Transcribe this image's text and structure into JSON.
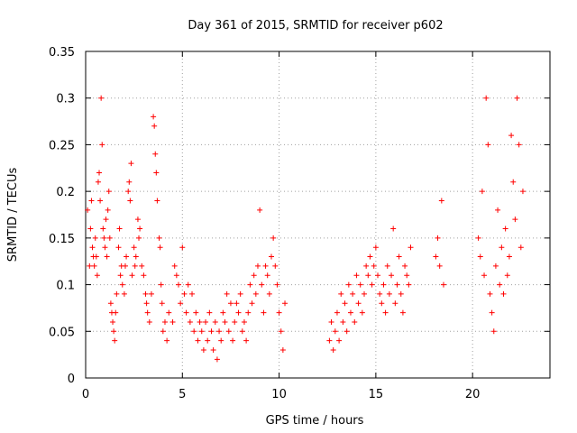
{
  "chart_data": {
    "type": "scatter",
    "title": "Day 361 of 2015, SRMTID for receiver p602",
    "xlabel": "GPS time / hours",
    "ylabel": "SRMTID / TECUs",
    "xlim": [
      0,
      24
    ],
    "ylim": [
      0,
      0.35
    ],
    "xticks": [
      0,
      5,
      10,
      15,
      20
    ],
    "xtick_labels": [
      "0",
      "5",
      "10",
      "15",
      "20"
    ],
    "yticks": [
      0,
      0.05,
      0.1,
      0.15,
      0.2,
      0.25,
      0.3,
      0.35
    ],
    "ytick_labels": [
      "0",
      "0.05",
      "0.1",
      "0.15",
      "0.2",
      "0.25",
      "0.3",
      "0.35"
    ],
    "grid": true,
    "marker": "+",
    "series": [
      {
        "name": "SRMTID",
        "color": "#ff0000",
        "points": [
          [
            0.1,
            0.18
          ],
          [
            0.2,
            0.12
          ],
          [
            0.25,
            0.16
          ],
          [
            0.3,
            0.19
          ],
          [
            0.35,
            0.14
          ],
          [
            0.4,
            0.13
          ],
          [
            0.45,
            0.12
          ],
          [
            0.5,
            0.15
          ],
          [
            0.55,
            0.13
          ],
          [
            0.6,
            0.11
          ],
          [
            0.65,
            0.21
          ],
          [
            0.7,
            0.22
          ],
          [
            0.75,
            0.19
          ],
          [
            0.8,
            0.3
          ],
          [
            0.85,
            0.25
          ],
          [
            0.9,
            0.16
          ],
          [
            0.95,
            0.15
          ],
          [
            1.0,
            0.14
          ],
          [
            1.05,
            0.17
          ],
          [
            1.1,
            0.13
          ],
          [
            1.15,
            0.18
          ],
          [
            1.2,
            0.2
          ],
          [
            1.25,
            0.15
          ],
          [
            1.3,
            0.08
          ],
          [
            1.35,
            0.07
          ],
          [
            1.4,
            0.06
          ],
          [
            1.45,
            0.05
          ],
          [
            1.5,
            0.04
          ],
          [
            1.55,
            0.07
          ],
          [
            1.6,
            0.09
          ],
          [
            1.7,
            0.14
          ],
          [
            1.75,
            0.16
          ],
          [
            1.8,
            0.11
          ],
          [
            1.85,
            0.12
          ],
          [
            1.9,
            0.1
          ],
          [
            2.0,
            0.09
          ],
          [
            2.05,
            0.12
          ],
          [
            2.1,
            0.13
          ],
          [
            2.2,
            0.2
          ],
          [
            2.25,
            0.21
          ],
          [
            2.3,
            0.19
          ],
          [
            2.35,
            0.23
          ],
          [
            2.4,
            0.11
          ],
          [
            2.5,
            0.14
          ],
          [
            2.55,
            0.12
          ],
          [
            2.6,
            0.13
          ],
          [
            2.7,
            0.17
          ],
          [
            2.75,
            0.15
          ],
          [
            2.8,
            0.16
          ],
          [
            2.9,
            0.12
          ],
          [
            3.0,
            0.11
          ],
          [
            3.1,
            0.09
          ],
          [
            3.15,
            0.08
          ],
          [
            3.2,
            0.07
          ],
          [
            3.3,
            0.06
          ],
          [
            3.4,
            0.09
          ],
          [
            3.5,
            0.28
          ],
          [
            3.55,
            0.27
          ],
          [
            3.6,
            0.24
          ],
          [
            3.65,
            0.22
          ],
          [
            3.7,
            0.19
          ],
          [
            3.8,
            0.15
          ],
          [
            3.85,
            0.14
          ],
          [
            3.9,
            0.1
          ],
          [
            3.95,
            0.08
          ],
          [
            4.0,
            0.05
          ],
          [
            4.1,
            0.06
          ],
          [
            4.2,
            0.04
          ],
          [
            4.3,
            0.07
          ],
          [
            4.5,
            0.06
          ],
          [
            4.6,
            0.12
          ],
          [
            4.7,
            0.11
          ],
          [
            4.8,
            0.1
          ],
          [
            4.9,
            0.08
          ],
          [
            5.0,
            0.14
          ],
          [
            5.1,
            0.09
          ],
          [
            5.2,
            0.07
          ],
          [
            5.3,
            0.1
          ],
          [
            5.4,
            0.06
          ],
          [
            5.5,
            0.09
          ],
          [
            5.6,
            0.05
          ],
          [
            5.7,
            0.07
          ],
          [
            5.8,
            0.04
          ],
          [
            5.9,
            0.06
          ],
          [
            6.0,
            0.05
          ],
          [
            6.1,
            0.03
          ],
          [
            6.2,
            0.06
          ],
          [
            6.3,
            0.04
          ],
          [
            6.4,
            0.07
          ],
          [
            6.5,
            0.05
          ],
          [
            6.6,
            0.03
          ],
          [
            6.7,
            0.06
          ],
          [
            6.8,
            0.02
          ],
          [
            6.9,
            0.05
          ],
          [
            7.0,
            0.04
          ],
          [
            7.1,
            0.07
          ],
          [
            7.2,
            0.06
          ],
          [
            7.3,
            0.09
          ],
          [
            7.4,
            0.05
          ],
          [
            7.5,
            0.08
          ],
          [
            7.6,
            0.04
          ],
          [
            7.7,
            0.06
          ],
          [
            7.8,
            0.08
          ],
          [
            7.9,
            0.07
          ],
          [
            8.0,
            0.09
          ],
          [
            8.1,
            0.05
          ],
          [
            8.2,
            0.06
          ],
          [
            8.3,
            0.04
          ],
          [
            8.4,
            0.07
          ],
          [
            8.5,
            0.1
          ],
          [
            8.6,
            0.08
          ],
          [
            8.7,
            0.11
          ],
          [
            8.8,
            0.09
          ],
          [
            8.9,
            0.12
          ],
          [
            9.0,
            0.18
          ],
          [
            9.1,
            0.1
          ],
          [
            9.2,
            0.07
          ],
          [
            9.3,
            0.12
          ],
          [
            9.4,
            0.11
          ],
          [
            9.5,
            0.09
          ],
          [
            9.6,
            0.13
          ],
          [
            9.7,
            0.15
          ],
          [
            9.8,
            0.12
          ],
          [
            9.9,
            0.1
          ],
          [
            10.0,
            0.07
          ],
          [
            10.1,
            0.05
          ],
          [
            10.2,
            0.03
          ],
          [
            10.3,
            0.08
          ],
          [
            12.6,
            0.04
          ],
          [
            12.7,
            0.06
          ],
          [
            12.8,
            0.03
          ],
          [
            12.9,
            0.05
          ],
          [
            13.0,
            0.07
          ],
          [
            13.1,
            0.04
          ],
          [
            13.2,
            0.09
          ],
          [
            13.3,
            0.06
          ],
          [
            13.4,
            0.08
          ],
          [
            13.5,
            0.05
          ],
          [
            13.6,
            0.1
          ],
          [
            13.7,
            0.07
          ],
          [
            13.8,
            0.09
          ],
          [
            13.9,
            0.06
          ],
          [
            14.0,
            0.11
          ],
          [
            14.1,
            0.08
          ],
          [
            14.2,
            0.1
          ],
          [
            14.3,
            0.07
          ],
          [
            14.4,
            0.09
          ],
          [
            14.5,
            0.12
          ],
          [
            14.6,
            0.11
          ],
          [
            14.7,
            0.13
          ],
          [
            14.8,
            0.1
          ],
          [
            14.9,
            0.12
          ],
          [
            15.0,
            0.14
          ],
          [
            15.1,
            0.11
          ],
          [
            15.2,
            0.09
          ],
          [
            15.3,
            0.08
          ],
          [
            15.4,
            0.1
          ],
          [
            15.5,
            0.07
          ],
          [
            15.6,
            0.12
          ],
          [
            15.7,
            0.09
          ],
          [
            15.8,
            0.11
          ],
          [
            15.9,
            0.16
          ],
          [
            16.0,
            0.08
          ],
          [
            16.1,
            0.1
          ],
          [
            16.2,
            0.13
          ],
          [
            16.3,
            0.09
          ],
          [
            16.4,
            0.07
          ],
          [
            16.5,
            0.12
          ],
          [
            16.6,
            0.11
          ],
          [
            16.7,
            0.1
          ],
          [
            16.8,
            0.14
          ],
          [
            18.1,
            0.13
          ],
          [
            18.2,
            0.15
          ],
          [
            18.3,
            0.12
          ],
          [
            18.4,
            0.19
          ],
          [
            18.5,
            0.1
          ],
          [
            20.3,
            0.15
          ],
          [
            20.4,
            0.13
          ],
          [
            20.5,
            0.2
          ],
          [
            20.6,
            0.11
          ],
          [
            20.7,
            0.3
          ],
          [
            20.8,
            0.25
          ],
          [
            20.9,
            0.09
          ],
          [
            21.0,
            0.07
          ],
          [
            21.1,
            0.05
          ],
          [
            21.2,
            0.12
          ],
          [
            21.3,
            0.18
          ],
          [
            21.4,
            0.1
          ],
          [
            21.5,
            0.14
          ],
          [
            21.6,
            0.09
          ],
          [
            21.7,
            0.16
          ],
          [
            21.8,
            0.11
          ],
          [
            21.9,
            0.13
          ],
          [
            22.0,
            0.26
          ],
          [
            22.1,
            0.21
          ],
          [
            22.2,
            0.17
          ],
          [
            22.3,
            0.3
          ],
          [
            22.4,
            0.25
          ],
          [
            22.5,
            0.14
          ],
          [
            22.6,
            0.2
          ]
        ]
      }
    ]
  }
}
